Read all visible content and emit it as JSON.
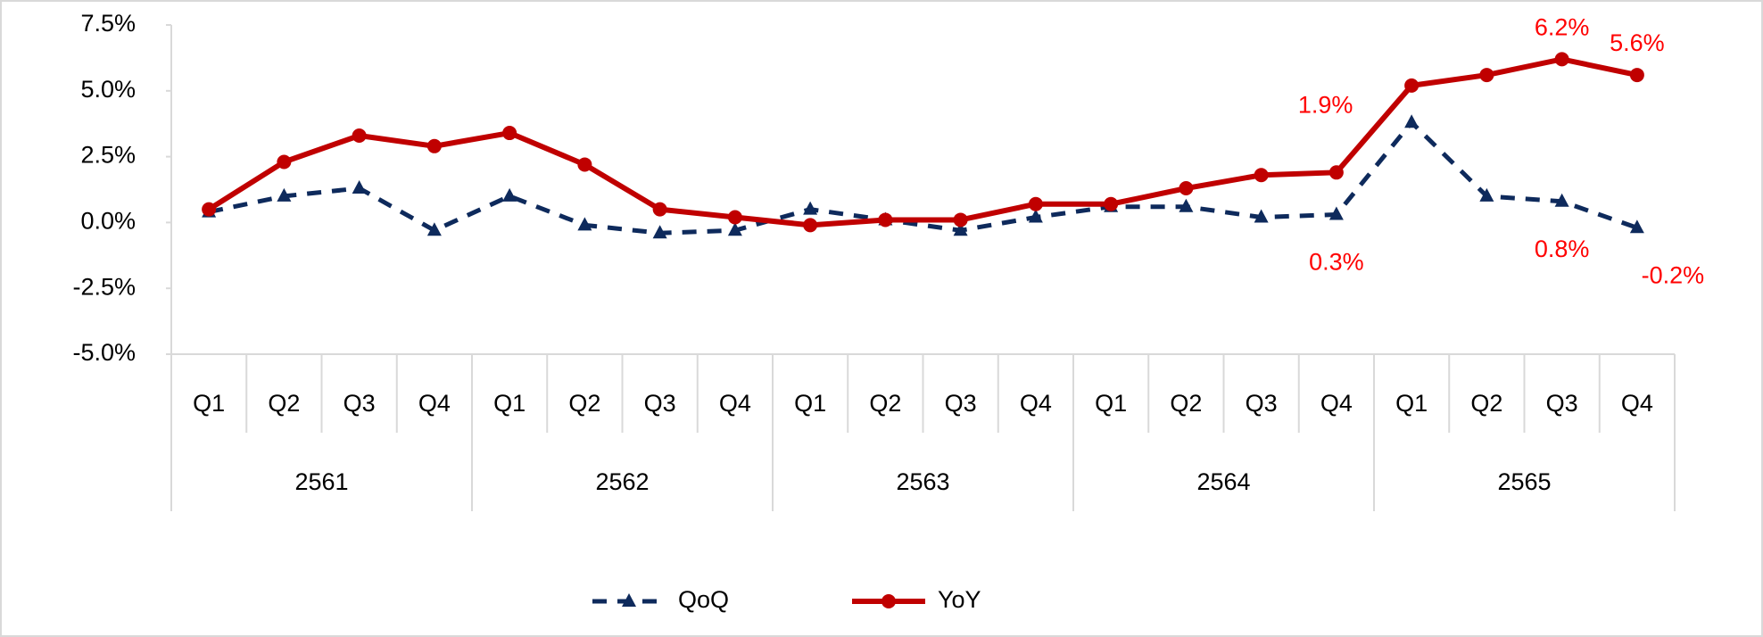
{
  "chart_data": {
    "type": "line",
    "categories": [
      "Q1",
      "Q2",
      "Q3",
      "Q4",
      "Q1",
      "Q2",
      "Q3",
      "Q4",
      "Q1",
      "Q2",
      "Q3",
      "Q4",
      "Q1",
      "Q2",
      "Q3",
      "Q4",
      "Q1",
      "Q2",
      "Q3",
      "Q4"
    ],
    "category_groups": [
      "2561",
      "2562",
      "2563",
      "2564",
      "2565"
    ],
    "series": [
      {
        "name": "QoQ",
        "color": "#0e2a5c",
        "dashed": true,
        "marker": "triangle",
        "values": [
          0.4,
          1.0,
          1.3,
          -0.3,
          1.0,
          -0.1,
          -0.4,
          -0.3,
          0.5,
          0.1,
          -0.3,
          0.2,
          0.6,
          0.6,
          0.2,
          0.3,
          3.8,
          1.0,
          0.8,
          -0.2
        ],
        "value_labels": [
          null,
          null,
          null,
          null,
          null,
          null,
          null,
          null,
          null,
          null,
          null,
          null,
          null,
          null,
          null,
          "0.3%",
          null,
          null,
          "0.8%",
          "-0.2%"
        ]
      },
      {
        "name": "YoY",
        "color": "#c00000",
        "dashed": false,
        "marker": "circle",
        "values": [
          0.5,
          2.3,
          3.3,
          2.9,
          3.4,
          2.2,
          0.5,
          0.2,
          -0.1,
          0.1,
          0.1,
          0.7,
          0.7,
          1.3,
          1.8,
          1.9,
          5.2,
          5.6,
          6.2,
          5.6
        ],
        "value_labels": [
          null,
          null,
          null,
          null,
          null,
          null,
          null,
          null,
          null,
          null,
          null,
          null,
          null,
          null,
          null,
          "1.9%",
          null,
          null,
          "6.2%",
          "5.6%"
        ]
      }
    ],
    "value_label_color": "#ff0000",
    "ylim": [
      -5,
      7.5
    ],
    "yticks": [
      {
        "value": -5,
        "label": "-5.0%"
      },
      {
        "value": -2.5,
        "label": "-2.5%"
      },
      {
        "value": 0,
        "label": "0.0%"
      },
      {
        "value": 2.5,
        "label": "2.5%"
      },
      {
        "value": 5,
        "label": "5.0%"
      },
      {
        "value": 7.5,
        "label": "7.5%"
      }
    ],
    "grid": false
  }
}
